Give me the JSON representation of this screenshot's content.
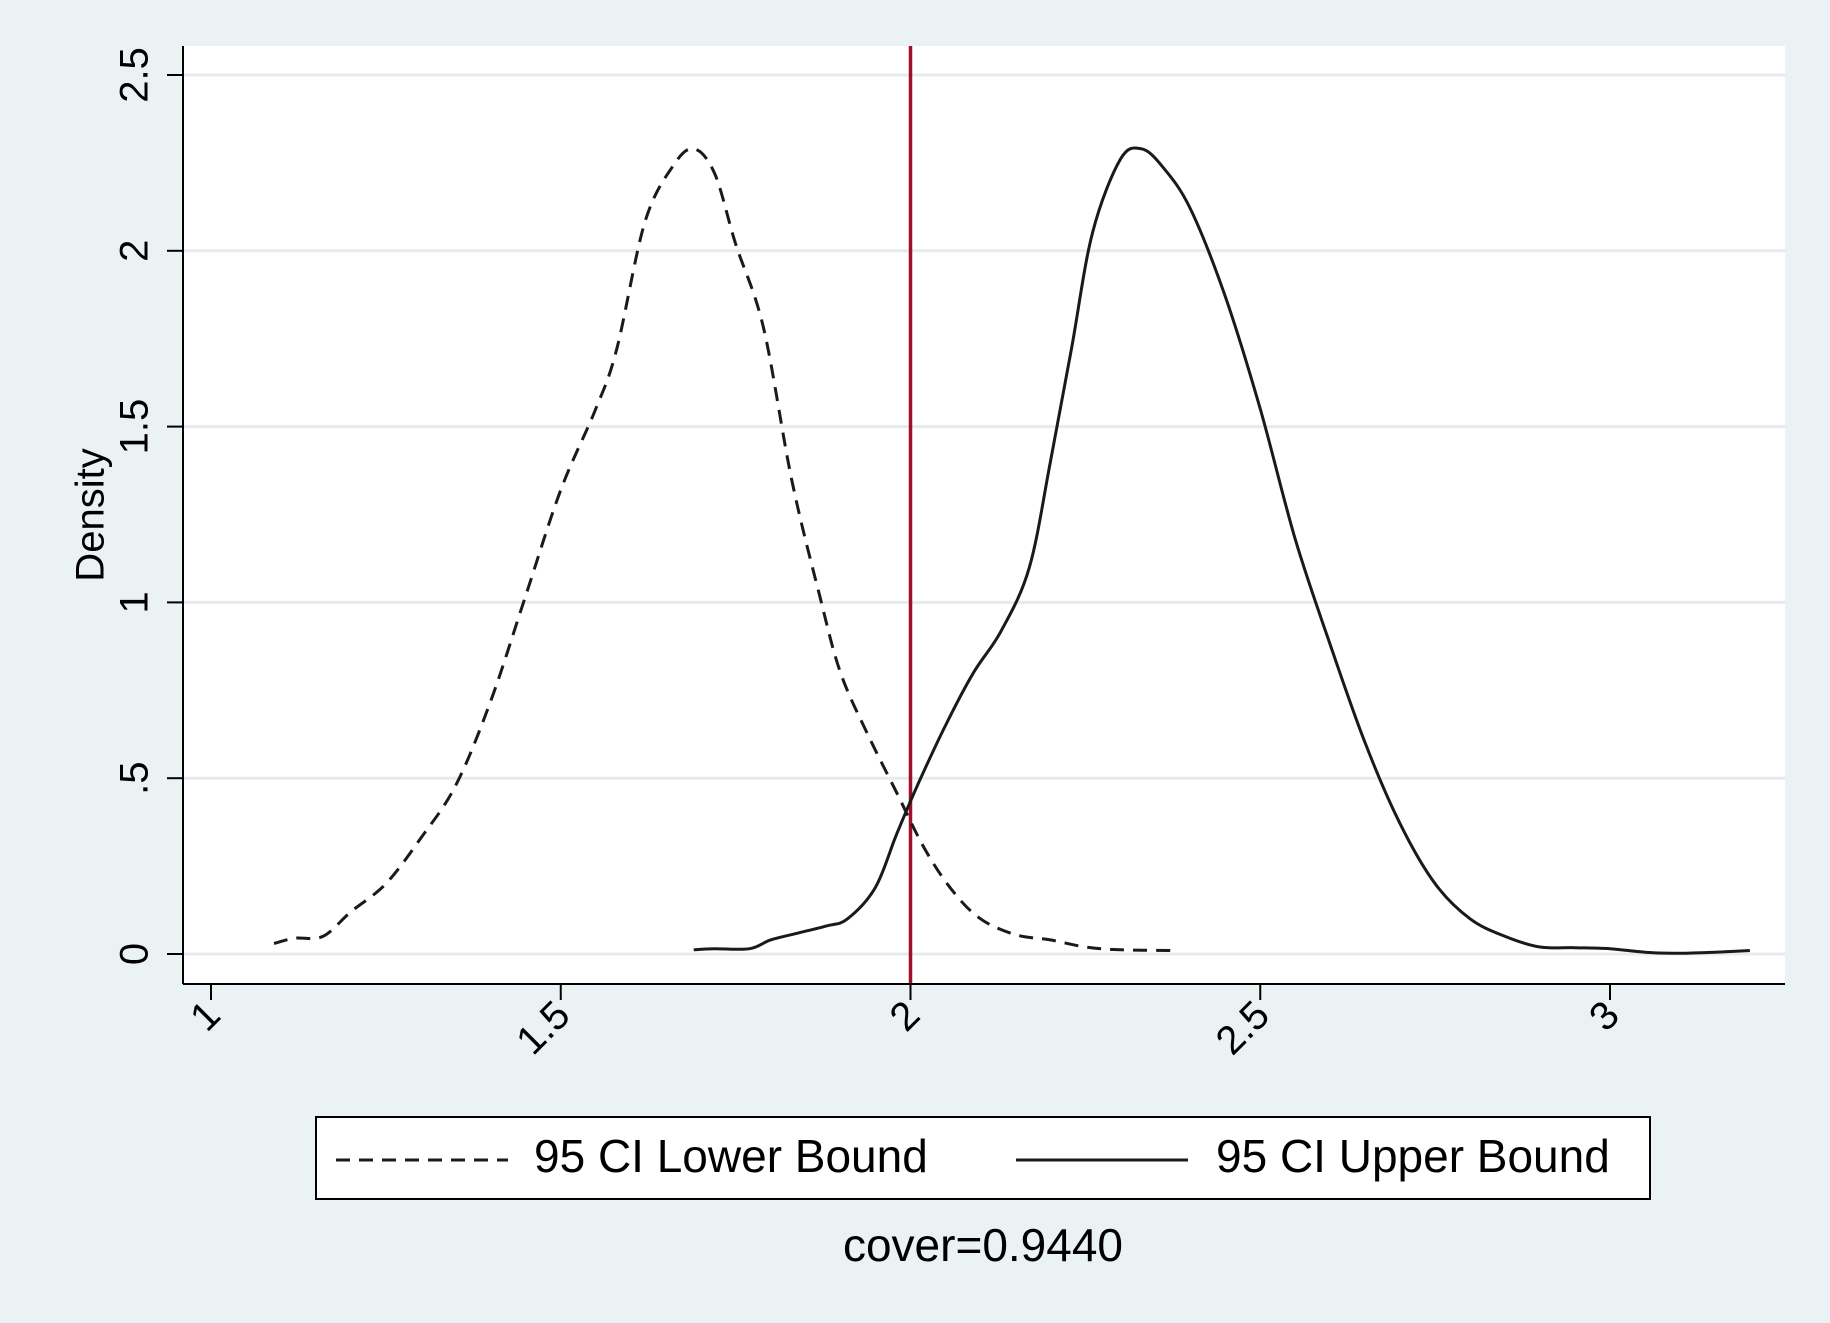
{
  "chart_data": {
    "type": "line",
    "title": "",
    "xlabel": "",
    "ylabel": "Density",
    "xlim": [
      1,
      3.25
    ],
    "ylim": [
      0,
      2.58
    ],
    "xticks": [
      {
        "value": 1,
        "label": "1"
      },
      {
        "value": 1.5,
        "label": "1.5"
      },
      {
        "value": 2,
        "label": "2"
      },
      {
        "value": 2.5,
        "label": "2.5"
      },
      {
        "value": 3,
        "label": "3"
      }
    ],
    "yticks": [
      {
        "value": 0,
        "label": "0"
      },
      {
        "value": 0.5,
        "label": ".5"
      },
      {
        "value": 1,
        "label": "1"
      },
      {
        "value": 1.5,
        "label": "1.5"
      },
      {
        "value": 2,
        "label": "2"
      },
      {
        "value": 2.5,
        "label": "2.5"
      }
    ],
    "grid": true,
    "reference_line": {
      "x": 2,
      "color": "#a0102a"
    },
    "series": [
      {
        "name": "95 CI Lower Bound",
        "style": "dashed",
        "color": "#1a1a1a",
        "points": [
          [
            1.09,
            0.03
          ],
          [
            1.12,
            0.045
          ],
          [
            1.16,
            0.05
          ],
          [
            1.2,
            0.12
          ],
          [
            1.25,
            0.2
          ],
          [
            1.3,
            0.33
          ],
          [
            1.35,
            0.48
          ],
          [
            1.4,
            0.72
          ],
          [
            1.45,
            1.02
          ],
          [
            1.5,
            1.32
          ],
          [
            1.55,
            1.55
          ],
          [
            1.58,
            1.72
          ],
          [
            1.62,
            2.08
          ],
          [
            1.66,
            2.24
          ],
          [
            1.69,
            2.29
          ],
          [
            1.72,
            2.22
          ],
          [
            1.75,
            2.02
          ],
          [
            1.79,
            1.78
          ],
          [
            1.83,
            1.35
          ],
          [
            1.87,
            1.02
          ],
          [
            1.9,
            0.8
          ],
          [
            1.94,
            0.62
          ],
          [
            1.98,
            0.46
          ],
          [
            2.02,
            0.3
          ],
          [
            2.06,
            0.18
          ],
          [
            2.1,
            0.1
          ],
          [
            2.15,
            0.055
          ],
          [
            2.2,
            0.04
          ],
          [
            2.25,
            0.02
          ],
          [
            2.3,
            0.012
          ],
          [
            2.38,
            0.01
          ]
        ]
      },
      {
        "name": "95 CI Upper Bound",
        "style": "solid",
        "color": "#1a1a1a",
        "points": [
          [
            1.69,
            0.012
          ],
          [
            1.72,
            0.015
          ],
          [
            1.77,
            0.015
          ],
          [
            1.8,
            0.04
          ],
          [
            1.84,
            0.06
          ],
          [
            1.88,
            0.08
          ],
          [
            1.91,
            0.1
          ],
          [
            1.95,
            0.19
          ],
          [
            1.98,
            0.34
          ],
          [
            2.01,
            0.48
          ],
          [
            2.05,
            0.65
          ],
          [
            2.09,
            0.8
          ],
          [
            2.13,
            0.92
          ],
          [
            2.17,
            1.1
          ],
          [
            2.2,
            1.4
          ],
          [
            2.23,
            1.72
          ],
          [
            2.26,
            2.05
          ],
          [
            2.3,
            2.26
          ],
          [
            2.33,
            2.29
          ],
          [
            2.36,
            2.24
          ],
          [
            2.4,
            2.12
          ],
          [
            2.45,
            1.87
          ],
          [
            2.5,
            1.55
          ],
          [
            2.55,
            1.18
          ],
          [
            2.6,
            0.88
          ],
          [
            2.65,
            0.6
          ],
          [
            2.7,
            0.37
          ],
          [
            2.75,
            0.2
          ],
          [
            2.8,
            0.1
          ],
          [
            2.85,
            0.05
          ],
          [
            2.9,
            0.02
          ],
          [
            2.95,
            0.018
          ],
          [
            3.0,
            0.015
          ],
          [
            3.05,
            0.005
          ],
          [
            3.1,
            0.002
          ],
          [
            3.15,
            0.005
          ],
          [
            3.2,
            0.01
          ]
        ]
      }
    ],
    "legend": {
      "position": "bottom",
      "entries": [
        "95 CI Lower Bound",
        "95 CI Upper Bound"
      ]
    },
    "note": "cover=0.9440"
  },
  "colors": {
    "background": "#eaf2f3",
    "plot_background": "#ffffff",
    "grid": "#e4ecef",
    "axis": "#000000",
    "reference_line": "#a0102a"
  }
}
